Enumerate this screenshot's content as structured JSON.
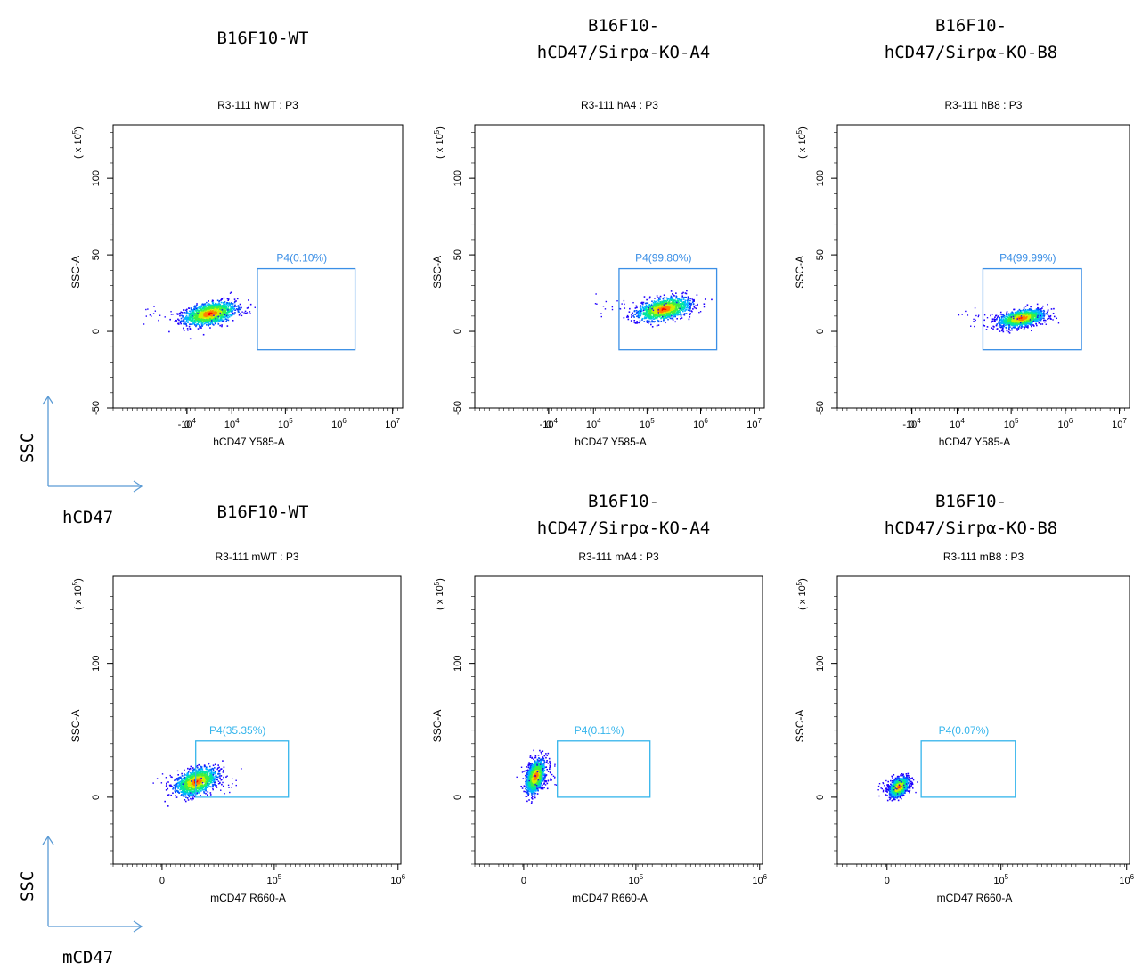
{
  "titles": [
    "B16F10-WT",
    "B16F10-\nhCD47/Sirpα-KO-A4",
    "B16F10-\nhCD47/Sirpα-KO-B8",
    "B16F10-WT",
    "B16F10-\nhCD47/Sirpα-KO-A4",
    "B16F10-\nhCD47/Sirpα-KO-B8"
  ],
  "side_labels": {
    "top_y": "SSC",
    "top_x": "hCD47",
    "bottom_y": "SSC",
    "bottom_x": "mCD47"
  },
  "colors": {
    "gate_blue": "#3b8fe6",
    "gate_cyan": "#35b5ec",
    "arrow": "#5b9bd5",
    "density": [
      "#1f00ff",
      "#0050ff",
      "#00b4ff",
      "#00e6a0",
      "#40f040",
      "#d0f000",
      "#ff8000",
      "#ff0000"
    ]
  },
  "chart_data": [
    {
      "type": "scatter",
      "title": "R3-111 hWT : P3",
      "xlabel": "hCD47 Y585-A",
      "ylabel": "SSC-A",
      "y_multiplier": "(x 10^5)",
      "x_scale": "biexponential",
      "x_ticks": [
        "-10^4",
        "0",
        "10^4",
        "10^5",
        "10^6",
        "10^7"
      ],
      "y_ticks": [
        "-50",
        "0",
        "50",
        "100"
      ],
      "ylim": [
        -50,
        135
      ],
      "gate": {
        "name": "P4",
        "label": "P4(0.10%)",
        "percent": 0.1,
        "x_range": [
          "3x10^4",
          "2x10^6"
        ],
        "y_range": [
          -12,
          41
        ],
        "color": "gate_blue"
      },
      "population": {
        "x_center": "5x10^3",
        "y_center": 12
      }
    },
    {
      "type": "scatter",
      "title": "R3-111 hA4 : P3",
      "xlabel": "hCD47 Y585-A",
      "ylabel": "SSC-A",
      "y_multiplier": "(x 10^5)",
      "x_scale": "biexponential",
      "x_ticks": [
        "-10^4",
        "0",
        "10^4",
        "10^5",
        "10^6",
        "10^7"
      ],
      "y_ticks": [
        "-50",
        "0",
        "50",
        "100"
      ],
      "ylim": [
        -50,
        135
      ],
      "gate": {
        "name": "P4",
        "label": "P4(99.80%)",
        "percent": 99.8,
        "x_range": [
          "3x10^4",
          "2x10^6"
        ],
        "y_range": [
          -12,
          41
        ],
        "color": "gate_blue"
      },
      "population": {
        "x_center": "2x10^5",
        "y_center": 15
      }
    },
    {
      "type": "scatter",
      "title": "R3-111 hB8 : P3",
      "xlabel": "hCD47 Y585-A",
      "ylabel": "SSC-A",
      "y_multiplier": "(x 10^5)",
      "x_scale": "biexponential",
      "x_ticks": [
        "-10^4",
        "0",
        "10^4",
        "10^5",
        "10^6",
        "10^7"
      ],
      "y_ticks": [
        "-50",
        "0",
        "50",
        "100"
      ],
      "ylim": [
        -50,
        135
      ],
      "gate": {
        "name": "P4",
        "label": "P4(99.99%)",
        "percent": 99.99,
        "x_range": [
          "3x10^4",
          "2x10^6"
        ],
        "y_range": [
          -12,
          41
        ],
        "color": "gate_blue"
      },
      "population": {
        "x_center": "1.5x10^5",
        "y_center": 9
      }
    },
    {
      "type": "scatter",
      "title": "R3-111 mWT : P3",
      "xlabel": "mCD47 R660-A",
      "ylabel": "SSC-A",
      "y_multiplier": "(x 10^5)",
      "x_scale": "biexponential",
      "x_ticks": [
        "0",
        "10^5",
        "10^6"
      ],
      "y_ticks": [
        "0",
        "100"
      ],
      "ylim": [
        -50,
        165
      ],
      "gate": {
        "name": "P4",
        "label": "P4(35.35%)",
        "percent": 35.35,
        "x_range": [
          "3x10^4",
          "1.3x10^5"
        ],
        "y_range": [
          0,
          42
        ],
        "color": "gate_cyan"
      },
      "population": {
        "x_center": "3x10^4",
        "y_center": 12
      }
    },
    {
      "type": "scatter",
      "title": "R3-111 mA4 : P3",
      "xlabel": "mCD47 R660-A",
      "ylabel": "SSC-A",
      "y_multiplier": "(x 10^5)",
      "x_scale": "biexponential",
      "x_ticks": [
        "0",
        "10^5",
        "10^6"
      ],
      "y_ticks": [
        "0",
        "100"
      ],
      "ylim": [
        -50,
        165
      ],
      "gate": {
        "name": "P4",
        "label": "P4(0.11%)",
        "percent": 0.11,
        "x_range": [
          "3x10^4",
          "1.3x10^5"
        ],
        "y_range": [
          0,
          42
        ],
        "color": "gate_cyan"
      },
      "population": {
        "x_center": "1x10^4",
        "y_center": 16
      }
    },
    {
      "type": "scatter",
      "title": "R3-111 mB8 : P3",
      "xlabel": "mCD47 R660-A",
      "ylabel": "SSC-A",
      "y_multiplier": "(x 10^5)",
      "x_scale": "biexponential",
      "x_ticks": [
        "0",
        "10^5",
        "10^6"
      ],
      "y_ticks": [
        "0",
        "100"
      ],
      "ylim": [
        -50,
        165
      ],
      "gate": {
        "name": "P4",
        "label": "P4(0.07%)",
        "percent": 0.07,
        "x_range": [
          "3x10^4",
          "1.3x10^5"
        ],
        "y_range": [
          0,
          42
        ],
        "color": "gate_cyan"
      },
      "population": {
        "x_center": "1x10^4",
        "y_center": 8
      }
    }
  ]
}
